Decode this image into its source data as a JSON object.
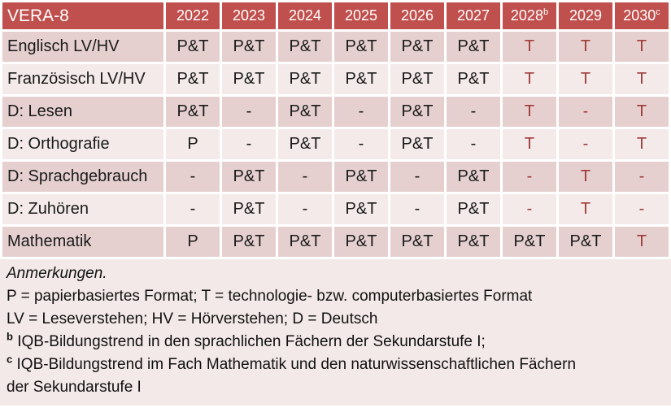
{
  "colors": {
    "header_bg": "#c0504d",
    "header_text": "#ffffff",
    "band_dark": "#e5d0cf",
    "band_light": "#f3eae9",
    "notes_bg": "#f2e9e8",
    "accent_text": "#9e3a37",
    "body_text": "#1a1a1a"
  },
  "table": {
    "corner_label": "VERA-8",
    "columns": [
      {
        "year": "2022",
        "sup": ""
      },
      {
        "year": "2023",
        "sup": ""
      },
      {
        "year": "2024",
        "sup": ""
      },
      {
        "year": "2025",
        "sup": ""
      },
      {
        "year": "2026",
        "sup": ""
      },
      {
        "year": "2027",
        "sup": ""
      },
      {
        "year": "2028",
        "sup": "b"
      },
      {
        "year": "2029",
        "sup": ""
      },
      {
        "year": "2030",
        "sup": "c"
      }
    ],
    "rows": [
      {
        "label": "Englisch LV/HV",
        "cells": [
          {
            "v": "P&T",
            "red": false
          },
          {
            "v": "P&T",
            "red": false
          },
          {
            "v": "P&T",
            "red": false
          },
          {
            "v": "P&T",
            "red": false
          },
          {
            "v": "P&T",
            "red": false
          },
          {
            "v": "P&T",
            "red": false
          },
          {
            "v": "T",
            "red": true
          },
          {
            "v": "T",
            "red": true
          },
          {
            "v": "T",
            "red": true
          }
        ]
      },
      {
        "label": "Französisch LV/HV",
        "cells": [
          {
            "v": "P&T",
            "red": false
          },
          {
            "v": "P&T",
            "red": false
          },
          {
            "v": "P&T",
            "red": false
          },
          {
            "v": "P&T",
            "red": false
          },
          {
            "v": "P&T",
            "red": false
          },
          {
            "v": "P&T",
            "red": false
          },
          {
            "v": "T",
            "red": true
          },
          {
            "v": "T",
            "red": true
          },
          {
            "v": "T",
            "red": true
          }
        ]
      },
      {
        "label": "D: Lesen",
        "cells": [
          {
            "v": "P&T",
            "red": false
          },
          {
            "v": "-",
            "red": false
          },
          {
            "v": "P&T",
            "red": false
          },
          {
            "v": "-",
            "red": false
          },
          {
            "v": "P&T",
            "red": false
          },
          {
            "v": "-",
            "red": false
          },
          {
            "v": "T",
            "red": true
          },
          {
            "v": "-",
            "red": true
          },
          {
            "v": "T",
            "red": true
          }
        ]
      },
      {
        "label": "D: Orthografie",
        "cells": [
          {
            "v": "P",
            "red": false
          },
          {
            "v": "-",
            "red": false
          },
          {
            "v": "P&T",
            "red": false
          },
          {
            "v": "-",
            "red": false
          },
          {
            "v": "P&T",
            "red": false
          },
          {
            "v": "-",
            "red": false
          },
          {
            "v": "T",
            "red": true
          },
          {
            "v": "-",
            "red": true
          },
          {
            "v": "T",
            "red": true
          }
        ]
      },
      {
        "label": "D: Sprachgebrauch",
        "cells": [
          {
            "v": "-",
            "red": false
          },
          {
            "v": "P&T",
            "red": false
          },
          {
            "v": "-",
            "red": false
          },
          {
            "v": "P&T",
            "red": false
          },
          {
            "v": "-",
            "red": false
          },
          {
            "v": "P&T",
            "red": false
          },
          {
            "v": "-",
            "red": true
          },
          {
            "v": "T",
            "red": true
          },
          {
            "v": "-",
            "red": true
          }
        ]
      },
      {
        "label": "D: Zuhören",
        "cells": [
          {
            "v": "-",
            "red": false
          },
          {
            "v": "P&T",
            "red": false
          },
          {
            "v": "-",
            "red": false
          },
          {
            "v": "P&T",
            "red": false
          },
          {
            "v": "-",
            "red": false
          },
          {
            "v": "P&T",
            "red": false
          },
          {
            "v": "-",
            "red": true
          },
          {
            "v": "T",
            "red": true
          },
          {
            "v": "-",
            "red": true
          }
        ]
      },
      {
        "label": "Mathematik",
        "cells": [
          {
            "v": "P",
            "red": false
          },
          {
            "v": "P&T",
            "red": false
          },
          {
            "v": "P&T",
            "red": false
          },
          {
            "v": "P&T",
            "red": false
          },
          {
            "v": "P&T",
            "red": false
          },
          {
            "v": "P&T",
            "red": false
          },
          {
            "v": "P&T",
            "red": false
          },
          {
            "v": "P&T",
            "red": false
          },
          {
            "v": "T",
            "red": true
          }
        ]
      }
    ]
  },
  "notes": {
    "heading": "Anmerkungen.",
    "lines": [
      {
        "sup": "",
        "text": "P = papierbasiertes Format; T = technologie- bzw. computerbasiertes Format"
      },
      {
        "sup": "",
        "text": "LV = Leseverstehen; HV = Hörverstehen; D = Deutsch"
      },
      {
        "sup": "b",
        "text": "IQB-Bildungstrend in den sprachlichen Fächern der Sekundarstufe I;"
      },
      {
        "sup": "c",
        "text": "IQB-Bildungstrend im Fach Mathematik und den naturwissenschaftlichen Fächern der Sekundarstufe I"
      }
    ]
  }
}
